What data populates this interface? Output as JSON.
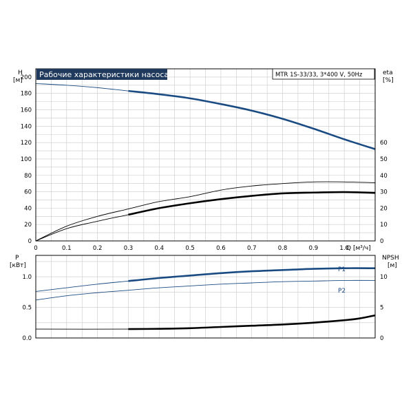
{
  "title": "Рабочие характеристики насоса",
  "model": "MTR 1S-33/33, 3*400 V, 50Hz",
  "colors": {
    "blue": "#1a4a82",
    "black": "#000000",
    "grid": "#c8c8c8",
    "frame": "#000000",
    "title_bg": "#1f3a5c"
  },
  "chart_data": [
    {
      "type": "line",
      "panel": "top",
      "y_left_label": [
        "H",
        "[м]"
      ],
      "y_right_label": [
        "eta",
        "[%]"
      ],
      "x_label": "Q [м³/ч]",
      "xlim": [
        0,
        1.1
      ],
      "ylim": [
        0,
        210
      ],
      "y2lim": [
        0,
        105
      ],
      "x_ticks": [
        "0",
        "0.1",
        "0.2",
        "0.3",
        "0.4",
        "0.5",
        "0.6",
        "0.7",
        "0.8",
        "0.9",
        "1.0"
      ],
      "x_tick_values": [
        0,
        0.1,
        0.2,
        0.3,
        0.4,
        0.5,
        0.6,
        0.7,
        0.8,
        0.9,
        1.0
      ],
      "y_ticks": [
        0,
        20,
        40,
        60,
        80,
        100,
        120,
        140,
        160,
        180,
        200
      ],
      "y2_ticks": [
        0,
        10,
        20,
        30,
        40,
        50,
        60
      ],
      "grid": true,
      "series": [
        {
          "axis": "left",
          "color": "blue",
          "x": [
            0,
            0.1,
            0.2,
            0.3,
            0.4,
            0.5,
            0.6,
            0.7,
            0.8,
            0.9,
            1.0,
            1.1
          ],
          "y": [
            192,
            190,
            187,
            183,
            179,
            174,
            167,
            159,
            149,
            137,
            124,
            112
          ],
          "bold_from": 0.3
        },
        {
          "axis": "right",
          "color": "black",
          "x": [
            0,
            0.1,
            0.2,
            0.3,
            0.4,
            0.5,
            0.6,
            0.7,
            0.8,
            0.9,
            1.0,
            1.1
          ],
          "y": [
            0,
            9,
            15,
            19.5,
            24,
            27,
            31,
            33.5,
            35,
            36,
            36,
            35.5
          ]
        },
        {
          "axis": "right",
          "color": "black",
          "x": [
            0,
            0.1,
            0.2,
            0.3,
            0.4,
            0.5,
            0.6,
            0.7,
            0.8,
            0.9,
            1.0,
            1.1
          ],
          "y": [
            0,
            7.5,
            12,
            16,
            20,
            23,
            25.5,
            27.5,
            29,
            29.5,
            29.8,
            29.3
          ],
          "bold_from": 0.3
        }
      ]
    },
    {
      "type": "line",
      "panel": "bottom",
      "y_left_label": [
        "P",
        "[кВт]"
      ],
      "y_right_label": [
        "NPSH",
        "[м]"
      ],
      "xlim": [
        0,
        1.1
      ],
      "ylim": [
        0,
        1.35
      ],
      "y2lim": [
        0,
        13.5
      ],
      "y_ticks": [
        "0.0",
        "0.5",
        "1.0"
      ],
      "y_tick_values": [
        0,
        0.5,
        1.0
      ],
      "y2_ticks": [
        0,
        5,
        10
      ],
      "grid": true,
      "series": [
        {
          "name": "P1",
          "axis": "left",
          "color": "blue",
          "x": [
            0,
            0.1,
            0.2,
            0.3,
            0.4,
            0.5,
            0.6,
            0.7,
            0.8,
            0.9,
            1.0,
            1.1
          ],
          "y": [
            0.76,
            0.82,
            0.88,
            0.93,
            0.98,
            1.02,
            1.06,
            1.09,
            1.11,
            1.13,
            1.14,
            1.14
          ],
          "bold_from": 0.3
        },
        {
          "name": "P2",
          "axis": "left",
          "color": "blue",
          "x": [
            0,
            0.1,
            0.2,
            0.3,
            0.4,
            0.5,
            0.6,
            0.7,
            0.8,
            0.9,
            1.0,
            1.1
          ],
          "y": [
            0.62,
            0.69,
            0.74,
            0.78,
            0.82,
            0.85,
            0.88,
            0.9,
            0.92,
            0.93,
            0.94,
            0.94
          ]
        },
        {
          "axis": "right",
          "color": "black",
          "x": [
            0,
            0.3,
            0.4,
            0.5,
            0.6,
            0.7,
            0.8,
            0.9,
            1.0,
            1.05,
            1.1
          ],
          "y": [
            1.45,
            1.45,
            1.5,
            1.6,
            1.8,
            2.0,
            2.2,
            2.5,
            2.9,
            3.2,
            3.7
          ],
          "bold_from": 0.3
        }
      ]
    }
  ]
}
